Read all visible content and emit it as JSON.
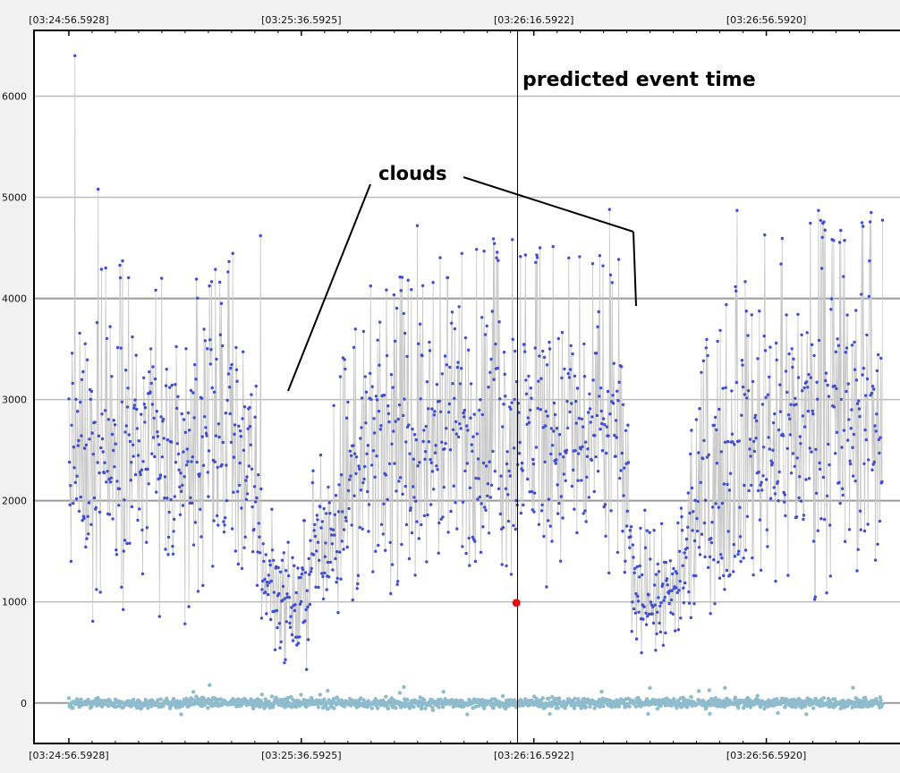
{
  "chart_data": {
    "type": "scatter",
    "title": "",
    "xlabel": "",
    "ylabel": "",
    "x_ticks": [
      "[03:24:56.5928]",
      "[03:25:36.5925]",
      "[03:26:16.5922]",
      "[03:26:56.5920]"
    ],
    "x_range_seconds": [
      -6,
      143
    ],
    "ylim": [
      -400,
      6650
    ],
    "y_ticks": [
      0,
      1000,
      2000,
      3000,
      4000,
      5000,
      6000
    ],
    "grid": "horizontal",
    "colors": {
      "main_series": "#3f4fd0",
      "main_line": "#c8c8c8",
      "baseline_series": "#8fbccc",
      "highlight": "#e01010",
      "grid": "#bdbdbd",
      "frame": "#000000"
    },
    "series": [
      {
        "role": "main",
        "note": "~1500 samples; values follow cloud-dependent envelope (min/max in data units)",
        "envelope": [
          {
            "t": 0,
            "min": 600,
            "max": 4200
          },
          {
            "t": 10,
            "min": 550,
            "max": 4400
          },
          {
            "t": 20,
            "min": 550,
            "max": 4100
          },
          {
            "t": 30,
            "min": 500,
            "max": 4600
          },
          {
            "t": 34,
            "min": 250,
            "max": 2200
          },
          {
            "t": 39,
            "min": 180,
            "max": 1600
          },
          {
            "t": 45,
            "min": 350,
            "max": 3100
          },
          {
            "t": 52,
            "min": 700,
            "max": 4200
          },
          {
            "t": 75,
            "min": 700,
            "max": 4600
          },
          {
            "t": 95,
            "min": 700,
            "max": 4400
          },
          {
            "t": 97,
            "min": 350,
            "max": 2000
          },
          {
            "t": 104,
            "min": 230,
            "max": 1700
          },
          {
            "t": 110,
            "min": 500,
            "max": 3700
          },
          {
            "t": 120,
            "min": 650,
            "max": 4800
          },
          {
            "t": 140,
            "min": 650,
            "max": 4800
          }
        ],
        "peaks": [
          {
            "t": 1,
            "v": 6400
          },
          {
            "t": 5,
            "v": 5080
          },
          {
            "t": 33,
            "v": 4620
          },
          {
            "t": 60,
            "v": 4720
          },
          {
            "t": 73,
            "v": 4590
          },
          {
            "t": 93,
            "v": 4880
          },
          {
            "t": 115,
            "v": 4870
          },
          {
            "t": 129,
            "v": 4870
          },
          {
            "t": 138,
            "v": 4850
          }
        ]
      },
      {
        "role": "baseline",
        "note": "near-zero noise band",
        "range": [
          -120,
          180
        ]
      }
    ],
    "highlight_point": {
      "t": 77,
      "v": 990
    },
    "annotations": [
      {
        "text": "predicted event time",
        "type": "vertical-line",
        "x": 77.2
      },
      {
        "text": "clouds",
        "type": "pointer",
        "targets": [
          {
            "t": 38,
            "v": 3000
          },
          {
            "t": 100,
            "v": 4000
          }
        ]
      }
    ]
  }
}
